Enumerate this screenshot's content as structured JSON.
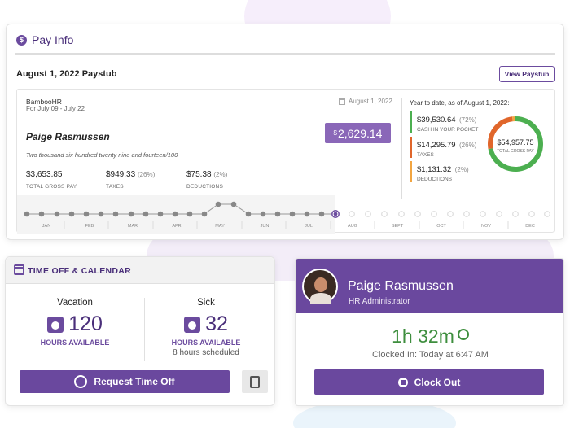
{
  "pay": {
    "title": "Pay Info",
    "stub_date": "August 1, 2022 Paystub",
    "view_btn": "View Paystub",
    "company": "BambooHR",
    "period": "For July 09 - July 22",
    "check_date": "August 1, 2022",
    "employee": "Paige Rasmussen",
    "net_currency": "$",
    "net_amount": "2,629.14",
    "amount_words": "Two thousand six hundred twenty nine and fourteen/100",
    "gross": {
      "value": "$3,653.85",
      "label": "TOTAL GROSS PAY"
    },
    "taxes": {
      "value": "$949.33",
      "pct": "(26%)",
      "label": "TAXES"
    },
    "deductions": {
      "value": "$75.38",
      "pct": "(2%)",
      "label": "DEDUCTIONS"
    },
    "ytd": {
      "title": "Year to date, as of August 1, 2022:",
      "items": [
        {
          "value": "$39,530.64",
          "pct": "(72%)",
          "label": "CASH IN YOUR POCKET",
          "color": "#4caf50"
        },
        {
          "value": "$14,295.79",
          "pct": "(26%)",
          "label": "TAXES",
          "color": "#e0662b"
        },
        {
          "value": "$1,131.32",
          "pct": "(2%)",
          "label": "DEDUCTIONS",
          "color": "#f2a541"
        }
      ],
      "total": "$54,957.75",
      "total_label": "TOTAL GROSS PAY"
    },
    "months": [
      "JAN",
      "FEB",
      "MAR",
      "APR",
      "MAY",
      "JUN",
      "JUL",
      "AUG",
      "SEPT",
      "OCT",
      "NOV",
      "DEC"
    ]
  },
  "time_off": {
    "title": "TIME OFF & CALENDAR",
    "vacation": {
      "name": "Vacation",
      "hours": "120",
      "hours_label": "HOURS AVAILABLE"
    },
    "sick": {
      "name": "Sick",
      "hours": "32",
      "hours_label": "HOURS AVAILABLE",
      "scheduled": "8 hours scheduled"
    },
    "request_btn": "Request Time Off"
  },
  "profile": {
    "name": "Paige Rasmussen",
    "role": "HR Administrator",
    "timer": "1h 32m",
    "clocked": "Clocked In: Today at 6:47 AM",
    "clock_out": "Clock Out"
  }
}
